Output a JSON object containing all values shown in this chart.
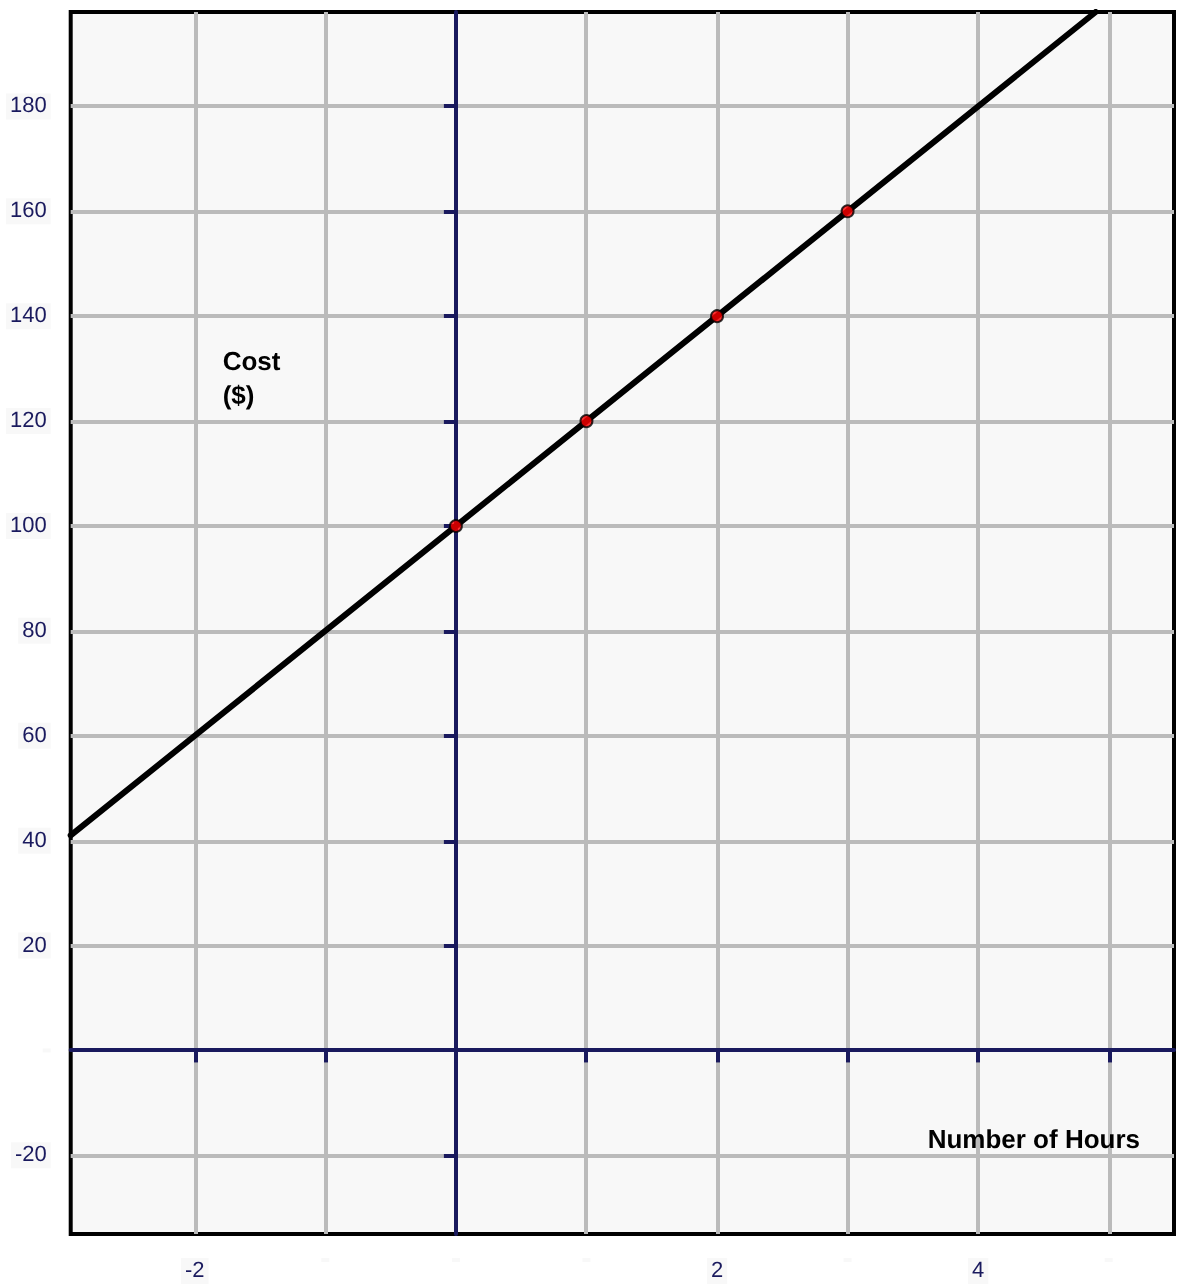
{
  "chart_data": {
    "type": "line",
    "xlabel": "Number of Hours",
    "ylabel": "Cost\n($)",
    "xlim": [
      -2.95,
      5.5
    ],
    "ylim": [
      -35,
      198
    ],
    "xticks": [
      {
        "value": -2,
        "label": "-2"
      },
      {
        "value": -1,
        "label": null
      },
      {
        "value": 0,
        "label": null
      },
      {
        "value": 1,
        "label": null
      },
      {
        "value": 2,
        "label": "2"
      },
      {
        "value": 3,
        "label": null
      },
      {
        "value": 4,
        "label": "4"
      },
      {
        "value": 5,
        "label": null
      }
    ],
    "yticks": [
      {
        "value": -20,
        "label": "-20"
      },
      {
        "value": 0,
        "label": null
      },
      20,
      40,
      60,
      80,
      100,
      120,
      140,
      160,
      180
    ],
    "grid": true,
    "line_style": "solid",
    "marker": "none",
    "series": [
      {
        "color": "#000000",
        "x": [
          -2.95,
          4.9
        ],
        "values": [
          41,
          198
        ]
      },
      {
        "type": "scatter",
        "color": "#ff0000",
        "marker": "circle",
        "x": [
          0,
          1,
          2,
          3
        ],
        "values": [
          100,
          120,
          140,
          160
        ]
      }
    ]
  }
}
